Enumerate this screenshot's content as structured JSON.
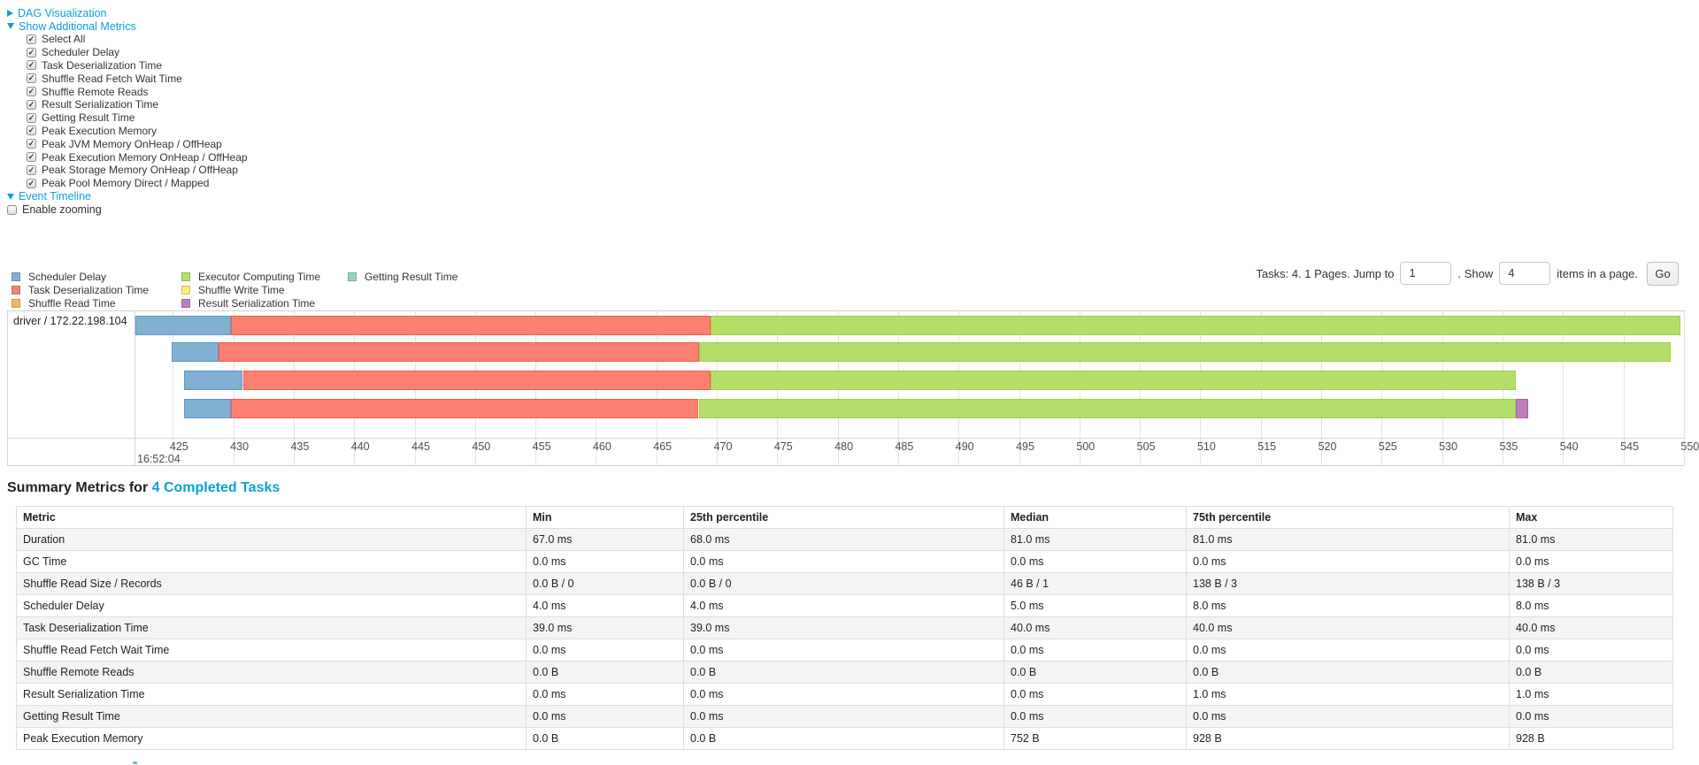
{
  "colors": {
    "link": "#0aa1d8",
    "grid_line": "#e4e4e4",
    "box_border": "#d2d2d2",
    "axis_text": "#4d4d4d",
    "table_border": "#dddddd",
    "row_stripe": "#f4f4f4"
  },
  "dag_section": {
    "label": "DAG Visualization"
  },
  "metrics_section": {
    "label": "Show Additional Metrics",
    "items": [
      "Select All",
      "Scheduler Delay",
      "Task Deserialization Time",
      "Shuffle Read Fetch Wait Time",
      "Shuffle Remote Reads",
      "Result Serialization Time",
      "Getting Result Time",
      "Peak Execution Memory",
      "Peak JVM Memory OnHeap / OffHeap",
      "Peak Execution Memory OnHeap / OffHeap",
      "Peak Storage Memory OnHeap / OffHeap",
      "Peak Pool Memory Direct / Mapped"
    ],
    "all_checked": true
  },
  "timeline_section": {
    "label": "Event Timeline",
    "enable_zooming_label": "Enable zooming",
    "enable_zooming_checked": false
  },
  "legend": {
    "columns": [
      [
        {
          "key": "scheduler_delay",
          "label": "Scheduler Delay"
        },
        {
          "key": "task_deserialization",
          "label": "Task Deserialization Time"
        },
        {
          "key": "shuffle_read",
          "label": "Shuffle Read Time"
        }
      ],
      [
        {
          "key": "executor_computing",
          "label": "Executor Computing Time"
        },
        {
          "key": "shuffle_write",
          "label": "Shuffle Write Time"
        },
        {
          "key": "result_serialization",
          "label": "Result Serialization Time"
        }
      ],
      [
        {
          "key": "getting_result",
          "label": "Getting Result Time"
        }
      ]
    ]
  },
  "palette": {
    "scheduler_delay": {
      "fill": "#80B1D3",
      "border": "#5d96c4"
    },
    "task_deserialization": {
      "fill": "#FB8072",
      "border": "#f95a48"
    },
    "shuffle_read": {
      "fill": "#FDB462",
      "border": "#fca033"
    },
    "executor_computing": {
      "fill": "#B3DE69",
      "border": "#9cd43e"
    },
    "shuffle_write": {
      "fill": "#FFED6F",
      "border": "#ffe83c"
    },
    "result_serialization": {
      "fill": "#BC80BD",
      "border": "#aa5fac"
    },
    "getting_result": {
      "fill": "#8DD3C7",
      "border": "#69c5b5"
    }
  },
  "pagination": {
    "tasks_text": "Tasks: 4. 1 Pages. Jump to",
    "jump_value": "1",
    "show_text": ". Show",
    "show_value": "4",
    "items_text": "items in a page.",
    "go_label": "Go"
  },
  "timeline": {
    "executor_label": "driver / 172.22.198.104",
    "start_time_label": "16:52:04",
    "axis": {
      "tick_start": 425,
      "tick_end": 550,
      "tick_step": 5,
      "unit": "ms within 16:52:04"
    },
    "rows": [
      {
        "segments": [
          {
            "key": "scheduler_delay",
            "start": 421.9,
            "end": 429.8
          },
          {
            "key": "task_deserialization",
            "start": 429.8,
            "end": 469.5
          },
          {
            "key": "executor_computing",
            "start": 469.5,
            "end": 549.7
          }
        ]
      },
      {
        "segments": [
          {
            "key": "scheduler_delay",
            "start": 424.9,
            "end": 428.8
          },
          {
            "key": "task_deserialization",
            "start": 428.8,
            "end": 468.5
          },
          {
            "key": "executor_computing",
            "start": 468.5,
            "end": 548.9
          }
        ]
      },
      {
        "segments": [
          {
            "key": "scheduler_delay",
            "start": 425.9,
            "end": 430.8
          },
          {
            "key": "task_deserialization",
            "start": 430.8,
            "end": 469.5
          },
          {
            "key": "executor_computing",
            "start": 469.5,
            "end": 536.1
          }
        ]
      },
      {
        "segments": [
          {
            "key": "scheduler_delay",
            "start": 425.9,
            "end": 429.8
          },
          {
            "key": "task_deserialization",
            "start": 429.8,
            "end": 468.5
          },
          {
            "key": "executor_computing",
            "start": 468.5,
            "end": 536.1
          },
          {
            "key": "result_serialization",
            "start": 536.1,
            "end": 537.1
          }
        ]
      }
    ]
  },
  "summary": {
    "title_prefix": "Summary Metrics for",
    "title_link": "4 Completed Tasks",
    "columns": [
      "Metric",
      "Min",
      "25th percentile",
      "Median",
      "75th percentile",
      "Max"
    ],
    "rows": [
      {
        "metric": "Duration",
        "values": [
          "67.0 ms",
          "68.0 ms",
          "81.0 ms",
          "81.0 ms",
          "81.0 ms"
        ]
      },
      {
        "metric": "GC Time",
        "values": [
          "0.0 ms",
          "0.0 ms",
          "0.0 ms",
          "0.0 ms",
          "0.0 ms"
        ]
      },
      {
        "metric": "Shuffle Read Size / Records",
        "values": [
          "0.0 B / 0",
          "0.0 B / 0",
          "46 B / 1",
          "138 B / 3",
          "138 B / 3"
        ]
      },
      {
        "metric": "Scheduler Delay",
        "values": [
          "4.0 ms",
          "4.0 ms",
          "5.0 ms",
          "8.0 ms",
          "8.0 ms"
        ]
      },
      {
        "metric": "Task Deserialization Time",
        "values": [
          "39.0 ms",
          "39.0 ms",
          "40.0 ms",
          "40.0 ms",
          "40.0 ms"
        ]
      },
      {
        "metric": "Shuffle Read Fetch Wait Time",
        "values": [
          "0.0 ms",
          "0.0 ms",
          "0.0 ms",
          "0.0 ms",
          "0.0 ms"
        ]
      },
      {
        "metric": "Shuffle Remote Reads",
        "values": [
          "0.0 B",
          "0.0 B",
          "0.0 B",
          "0.0 B",
          "0.0 B"
        ]
      },
      {
        "metric": "Result Serialization Time",
        "values": [
          "0.0 ms",
          "0.0 ms",
          "0.0 ms",
          "1.0 ms",
          "1.0 ms"
        ]
      },
      {
        "metric": "Getting Result Time",
        "values": [
          "0.0 ms",
          "0.0 ms",
          "0.0 ms",
          "0.0 ms",
          "0.0 ms"
        ]
      },
      {
        "metric": "Peak Execution Memory",
        "values": [
          "0.0 B",
          "0.0 B",
          "752 B",
          "928 B",
          "928 B"
        ]
      }
    ]
  }
}
